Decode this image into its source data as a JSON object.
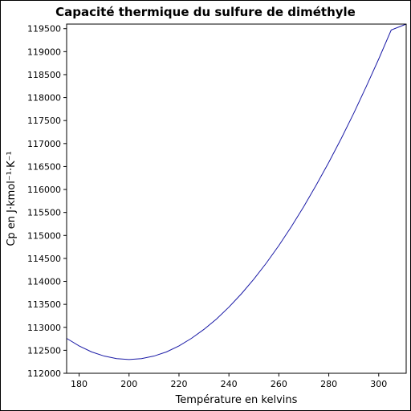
{
  "chart_data": {
    "type": "line",
    "title": "Capacité thermique du sulfure de diméthyle",
    "xlabel": "Température en kelvins",
    "ylabel": "Cp en J·kmol⁻¹·K⁻¹",
    "xlim": [
      175,
      311
    ],
    "ylim": [
      112000,
      119600
    ],
    "xticks": [
      "180",
      "200",
      "220",
      "240",
      "260",
      "280",
      "300"
    ],
    "yticks": [
      "112000",
      "112500",
      "113000",
      "113500",
      "114000",
      "114500",
      "115000",
      "115500",
      "116000",
      "116500",
      "117000",
      "117500",
      "118000",
      "118500",
      "119000",
      "119500"
    ],
    "grid": false,
    "line_color": "#1a1aa6",
    "series": [
      {
        "x": [
          175,
          180,
          185,
          190,
          195,
          200,
          205,
          210,
          215,
          220,
          225,
          230,
          235,
          240,
          245,
          250,
          255,
          260,
          265,
          270,
          275,
          280,
          285,
          290,
          295,
          300,
          305,
          311
        ],
        "values": [
          112760,
          112595,
          112465,
          112375,
          112318,
          112300,
          112318,
          112375,
          112465,
          112595,
          112760,
          112955,
          113180,
          113440,
          113730,
          114050,
          114400,
          114780,
          115190,
          115630,
          116100,
          116590,
          117110,
          117660,
          118240,
          118840,
          119470,
          119600
        ]
      }
    ]
  }
}
